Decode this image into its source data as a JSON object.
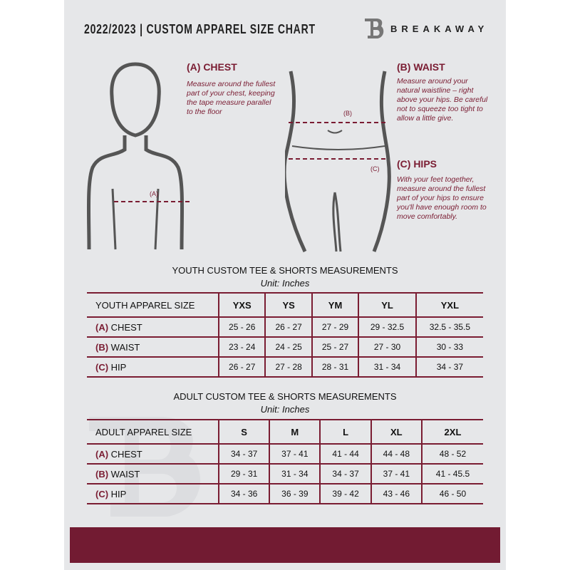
{
  "header": {
    "title": "2022/2023  |  CUSTOM APPAREL SIZE CHART",
    "brand": "BREAKAWAY",
    "logo_letter": "B"
  },
  "colors": {
    "accent": "#7a1c32",
    "background": "#e6e7e9"
  },
  "guide": {
    "chest": {
      "title": "(A) CHEST",
      "text": "Measure around the fullest part of your chest, keeping the tape measure parallel to the floor",
      "marker": "(A)"
    },
    "waist": {
      "title": "(B) WAIST",
      "text": "Measure around your natural waistline – right above your hips. Be careful not to squeeze too tight to allow a little give.",
      "marker": "(B)"
    },
    "hips": {
      "title": "(C) HIPS",
      "text": "With your feet together, measure around the fullest part of your hips to ensure you'll have enough room to move comfortably.",
      "marker": "(C)"
    }
  },
  "youth": {
    "title": "YOUTH CUSTOM TEE & SHORTS MEASUREMENTS",
    "unit": "Unit: Inches",
    "header": "YOUTH APPAREL SIZE",
    "sizes": [
      "YXS",
      "YS",
      "YM",
      "YL",
      "YXL"
    ],
    "rows": [
      {
        "code": "(A)",
        "name": "CHEST",
        "values": [
          "25 - 26",
          "26 - 27",
          "27 - 29",
          "29 - 32.5",
          "32.5 - 35.5"
        ]
      },
      {
        "code": "(B)",
        "name": "WAIST",
        "values": [
          "23 - 24",
          "24 - 25",
          "25 - 27",
          "27 - 30",
          "30 - 33"
        ]
      },
      {
        "code": "(C)",
        "name": "HIP",
        "values": [
          "26 - 27",
          "27 - 28",
          "28 - 31",
          "31 - 34",
          "34 - 37"
        ]
      }
    ]
  },
  "adult": {
    "title": "ADULT CUSTOM TEE & SHORTS MEASUREMENTS",
    "unit": "Unit: Inches",
    "header": "ADULT APPAREL SIZE",
    "sizes": [
      "S",
      "M",
      "L",
      "XL",
      "2XL"
    ],
    "rows": [
      {
        "code": "(A)",
        "name": "CHEST",
        "values": [
          "34 - 37",
          "37 - 41",
          "41 - 44",
          "44 - 48",
          "48 - 52"
        ]
      },
      {
        "code": "(B)",
        "name": "WAIST",
        "values": [
          "29 - 31",
          "31 - 34",
          "34 - 37",
          "37 - 41",
          "41 - 45.5"
        ]
      },
      {
        "code": "(C)",
        "name": "HIP",
        "values": [
          "34 - 36",
          "36 - 39",
          "39 - 42",
          "43 - 46",
          "46 - 50"
        ]
      }
    ]
  }
}
